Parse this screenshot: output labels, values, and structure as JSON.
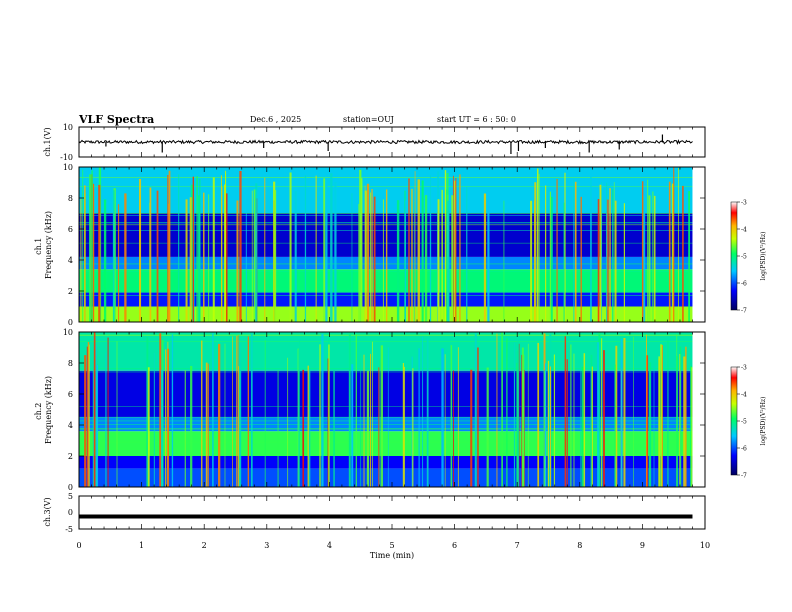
{
  "header": {
    "title": "VLF Spectra",
    "date": "Dec.6 , 2025",
    "station": "station=OUJ",
    "start": "start UT = 6 : 50: 0"
  },
  "colors": {
    "spec_low": "#000078",
    "spec_mid": "#1ee61e",
    "spec_high": "#b40000",
    "trace": "#000000"
  },
  "chart_data": [
    {
      "type": "line",
      "name": "ch.1 waveform",
      "ylabel": "ch.1(V)",
      "ylim": [
        -10,
        10
      ],
      "yticks": [
        "10",
        "-10"
      ],
      "xlim": [
        0,
        10
      ],
      "baseline_V": 0,
      "noise_amplitude_V": 1,
      "spikes": [
        {
          "t": 0.43,
          "v": -3
        },
        {
          "t": 1.33,
          "v": -7
        },
        {
          "t": 2.95,
          "v": -4
        },
        {
          "t": 3.98,
          "v": -6
        },
        {
          "t": 6.9,
          "v": -8
        },
        {
          "t": 7.02,
          "v": -6
        },
        {
          "t": 7.45,
          "v": -4
        },
        {
          "t": 8.15,
          "v": -7
        },
        {
          "t": 8.63,
          "v": -5
        },
        {
          "t": 9.32,
          "v": 5
        }
      ]
    },
    {
      "type": "heatmap",
      "name": "ch.1 spectrogram",
      "ylabel": "ch.1 Frequency (kHz)",
      "xlim": [
        0,
        10
      ],
      "data_end_min": 9.8,
      "ylim": [
        0,
        10
      ],
      "yticks": [
        "0",
        "2",
        "4",
        "6",
        "8",
        "10"
      ],
      "colorbar": {
        "label": "log(PSD)(V²/Hz)",
        "range": [
          -7,
          -3
        ],
        "ticks": [
          "-3",
          "-4",
          "-5",
          "-6",
          "-7"
        ]
      },
      "bands": [
        {
          "f_low_khz": 0,
          "f_high_khz": 1.0,
          "level": -4.5
        },
        {
          "f_low_khz": 1.0,
          "f_high_khz": 1.9,
          "level": -6.2
        },
        {
          "f_low_khz": 1.9,
          "f_high_khz": 3.4,
          "level": -5.0
        },
        {
          "f_low_khz": 3.4,
          "f_high_khz": 4.2,
          "level": -5.8
        },
        {
          "f_low_khz": 4.2,
          "f_high_khz": 7.0,
          "level": -6.5
        },
        {
          "f_low_khz": 7.0,
          "f_high_khz": 10.0,
          "level": -5.5
        }
      ]
    },
    {
      "type": "heatmap",
      "name": "ch.2 spectrogram",
      "ylabel": "ch.2 Frequency (kHz)",
      "xlim": [
        0,
        10
      ],
      "data_end_min": 9.8,
      "ylim": [
        0,
        10
      ],
      "yticks": [
        "0",
        "2",
        "4",
        "6",
        "8",
        "10"
      ],
      "colorbar": {
        "label": "log(PSD)(V²/Hz)",
        "range": [
          -7,
          -3
        ],
        "ticks": [
          "-3",
          "-4",
          "-5",
          "-6",
          "-7"
        ]
      },
      "bands": [
        {
          "f_low_khz": 0,
          "f_high_khz": 1.2,
          "level": -6.0
        },
        {
          "f_low_khz": 1.2,
          "f_high_khz": 2.0,
          "level": -6.3
        },
        {
          "f_low_khz": 2.0,
          "f_high_khz": 3.6,
          "level": -4.8
        },
        {
          "f_low_khz": 3.6,
          "f_high_khz": 4.5,
          "level": -5.8
        },
        {
          "f_low_khz": 4.5,
          "f_high_khz": 7.5,
          "level": -6.4
        },
        {
          "f_low_khz": 7.5,
          "f_high_khz": 10.0,
          "level": -5.2
        }
      ]
    },
    {
      "type": "line",
      "name": "ch.3 waveform",
      "ylabel": "ch.3(V)",
      "ylim": [
        -5,
        5
      ],
      "yticks": [
        "5",
        "0",
        "-5"
      ],
      "xlim": [
        0,
        10
      ],
      "baseline_V": -1.2
    }
  ],
  "xaxis": {
    "label": "Time (min)",
    "range": [
      0,
      10
    ],
    "ticks": [
      "0",
      "1",
      "2",
      "3",
      "4",
      "5",
      "6",
      "7",
      "8",
      "9",
      "10"
    ]
  }
}
